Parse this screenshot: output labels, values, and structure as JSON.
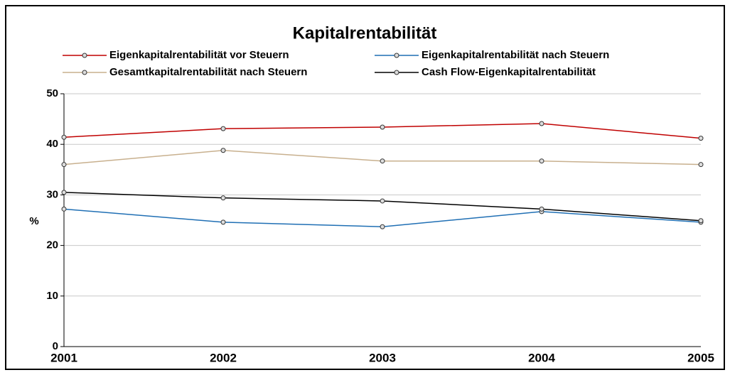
{
  "chart_data": {
    "type": "line",
    "title": "Kapitalrentabilität",
    "y_label": "%",
    "categories": [
      "2001",
      "2002",
      "2003",
      "2004",
      "2005"
    ],
    "series": [
      {
        "name": "Eigenkapitalrentabilität vor Steuern",
        "color": "#c00000",
        "values": [
          41.4,
          43.1,
          43.4,
          44.1,
          41.2
        ]
      },
      {
        "name": "Eigenkapitalrentabilität nach Steuern",
        "color": "#1f6fb4",
        "values": [
          27.2,
          24.6,
          23.7,
          26.7,
          24.6
        ]
      },
      {
        "name": "Gesamtkapitalrentabilität nach Steuern",
        "color": "#c8b08e",
        "values": [
          36.0,
          38.8,
          36.7,
          36.7,
          36.0
        ]
      },
      {
        "name": "Cash Flow-Eigenkapitalrentabilität",
        "color": "#000000",
        "values": [
          30.5,
          29.4,
          28.8,
          27.2,
          24.9
        ]
      }
    ],
    "ylim": [
      0,
      50
    ],
    "yticks": [
      0,
      10,
      20,
      30,
      40,
      50
    ],
    "grid": true
  }
}
